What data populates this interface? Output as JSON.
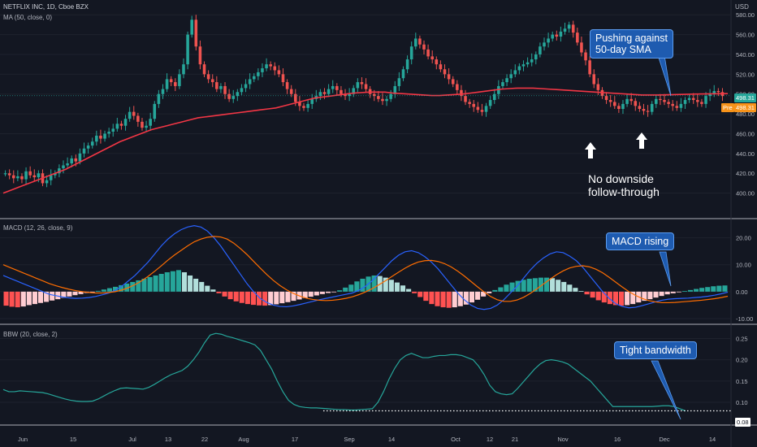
{
  "header": {
    "symbol": "NETFLIX INC, 1D, Cboe BZX",
    "ma_label": "MA (50, close, 0)",
    "currency": "USD"
  },
  "panes": {
    "macd_label": "MACD (12, 26, close, 9)",
    "bbw_label": "BBW (20, close, 2)"
  },
  "price_tags": {
    "last": "498.31",
    "pre_label": "Pre",
    "pre": "498.31",
    "bbw_last": "0.08"
  },
  "annotations": {
    "sma_callout": [
      "Pushing against",
      "50-day SMA"
    ],
    "macd_callout": "MACD rising",
    "bbw_callout": "Tight bandwidth",
    "no_downside": [
      "No downside",
      "follow-through"
    ]
  },
  "colors": {
    "background": "#131722",
    "up": "#26a69a",
    "down": "#ef5350",
    "ma": "#f23645",
    "macd": "#2962ff",
    "signal": "#ff6d00",
    "bbw": "#26a69a",
    "callout": "#1e5bb0"
  },
  "chart_data": [
    {
      "type": "candlestick",
      "title": "NETFLIX INC, 1D, Cboe BZX",
      "ylim": [
        380,
        590
      ],
      "y_ticks": [
        400,
        420,
        440,
        460,
        480,
        500,
        520,
        540,
        560,
        580
      ],
      "y_tick_labels": [
        "400.00",
        "420.00",
        "440.00",
        "460.00",
        "480.00",
        "500.00",
        "520.00",
        "540.00",
        "560.00",
        "580.00"
      ],
      "x_ticks": [
        "Jun",
        "15",
        "Jul",
        "13",
        "22",
        "Aug",
        "17",
        "Sep",
        "14",
        "Oct",
        "12",
        "21",
        "Nov",
        "16",
        "Dec",
        "14"
      ],
      "series": [
        {
          "name": "Close",
          "values": [
            420,
            418,
            415,
            417,
            414,
            422,
            418,
            416,
            420,
            410,
            413,
            418,
            420,
            425,
            428,
            430,
            435,
            432,
            440,
            445,
            448,
            452,
            458,
            455,
            460,
            462,
            465,
            470,
            468,
            475,
            482,
            478,
            472,
            466,
            468,
            475,
            490,
            500,
            505,
            515,
            512,
            508,
            520,
            530,
            560,
            575,
            548,
            530,
            520,
            515,
            512,
            505,
            508,
            500,
            495,
            498,
            502,
            506,
            510,
            515,
            518,
            522,
            526,
            530,
            528,
            524,
            520,
            512,
            505,
            500,
            492,
            488,
            486,
            490,
            495,
            498,
            502,
            500,
            505,
            508,
            504,
            500,
            498,
            500,
            506,
            512,
            510,
            505,
            500,
            498,
            495,
            493,
            495,
            500,
            508,
            516,
            525,
            535,
            548,
            556,
            550,
            545,
            538,
            535,
            530,
            525,
            520,
            515,
            510,
            504,
            498,
            492,
            490,
            487,
            484,
            482,
            488,
            494,
            500,
            508,
            512,
            516,
            520,
            524,
            528,
            530,
            532,
            535,
            540,
            548,
            552,
            556,
            560,
            558,
            563,
            566,
            570,
            562,
            552,
            542,
            534,
            520,
            510,
            504,
            498,
            494,
            492,
            488,
            485,
            490,
            495,
            493,
            488,
            485,
            483,
            482,
            490,
            495,
            494,
            492,
            490,
            488,
            486,
            490,
            494,
            496,
            494,
            492,
            490,
            498,
            500,
            503,
            502,
            498
          ]
        },
        {
          "name": "MA (50, close, 0)",
          "values": [
            400,
            403,
            406,
            409,
            412,
            415,
            418,
            421,
            424,
            428,
            432,
            436,
            440,
            444,
            448,
            452,
            455,
            458,
            461,
            464,
            466,
            468,
            470,
            472,
            474,
            476,
            477,
            478,
            479,
            480,
            481,
            482,
            483,
            484,
            485,
            486,
            488,
            490,
            492,
            494,
            496,
            497,
            498,
            499,
            500,
            501,
            501.5,
            502,
            502,
            502,
            501,
            500.5,
            500,
            499.5,
            499,
            498.5,
            498.5,
            499,
            499.5,
            500,
            501,
            502,
            503,
            504,
            505,
            505.5,
            506,
            506,
            506,
            505.5,
            505,
            504.5,
            504,
            503.5,
            503,
            502.5,
            502,
            501.5,
            501,
            500.5,
            500,
            499.5,
            499,
            499,
            499,
            499.2,
            499.4,
            499.6,
            499.8,
            500,
            500.1,
            500.2,
            500.3,
            500.4
          ]
        }
      ]
    },
    {
      "type": "bar",
      "title": "MACD (12, 26, close, 9)",
      "ylim": [
        -10,
        25
      ],
      "y_ticks": [
        -10,
        0,
        10,
        20
      ],
      "y_tick_labels": [
        "-10.00",
        "0.00",
        "10.00",
        "20.00"
      ],
      "series": [
        {
          "name": "Histogram",
          "values": [
            -5.2,
            -5.6,
            -5.8,
            -5.5,
            -5.0,
            -4.6,
            -4.2,
            -3.8,
            -3.3,
            -2.8,
            -2.3,
            -1.8,
            -1.3,
            -0.9,
            -0.5,
            -0.2,
            0.3,
            0.8,
            1.3,
            1.8,
            2.4,
            3.0,
            3.6,
            4.2,
            4.8,
            5.4,
            6.0,
            6.6,
            7.2,
            7.6,
            8.0,
            7.2,
            6.0,
            4.8,
            3.6,
            2.2,
            0.8,
            -0.6,
            -1.8,
            -2.8,
            -3.6,
            -4.2,
            -4.6,
            -4.9,
            -5.1,
            -5.2,
            -5.0,
            -4.7,
            -4.3,
            -3.9,
            -3.4,
            -2.9,
            -2.4,
            -1.9,
            -1.4,
            -0.9,
            -0.5,
            -0.2,
            0.5,
            1.5,
            2.6,
            3.8,
            4.8,
            5.6,
            6.0,
            5.8,
            5.2,
            4.4,
            3.4,
            2.3,
            1.0,
            -0.6,
            -2.0,
            -3.4,
            -4.6,
            -5.4,
            -5.8,
            -6.0,
            -5.8,
            -5.4,
            -4.8,
            -4.0,
            -3.0,
            -1.8,
            -0.6,
            0.6,
            1.6,
            2.6,
            3.4,
            4.0,
            4.4,
            4.8,
            5.0,
            5.2,
            5.2,
            5.0,
            4.4,
            3.6,
            2.6,
            1.4,
            0.2,
            -1.0,
            -2.2,
            -3.2,
            -4.0,
            -4.6,
            -5.0,
            -5.2,
            -5.0,
            -4.6,
            -4.0,
            -3.4,
            -2.8,
            -2.2,
            -1.6,
            -1.0,
            -0.6,
            -0.2,
            0.2,
            0.6,
            1.0,
            1.4,
            1.7,
            2.0,
            2.2,
            2.3
          ]
        },
        {
          "name": "MACD",
          "values": [
            6,
            5,
            4,
            3,
            2,
            1,
            0,
            -1,
            -1.5,
            -2,
            -2.3,
            -2.5,
            -2.4,
            -2.2,
            -1.8,
            -1.2,
            -0.5,
            0.5,
            2,
            4,
            6,
            8.5,
            11,
            14,
            17,
            19.5,
            21.5,
            23,
            24,
            24.5,
            24,
            22.5,
            20,
            17,
            13.5,
            10,
            6.5,
            3,
            0,
            -2.5,
            -4,
            -5,
            -5.5,
            -5.6,
            -5.3,
            -4.8,
            -4.2,
            -3.6,
            -3,
            -2.5,
            -2,
            -1.5,
            -1,
            -0.5,
            0.5,
            2,
            4,
            6.5,
            9,
            11.5,
            13.5,
            14.8,
            15.2,
            14.5,
            13,
            11,
            8.5,
            5.5,
            2.5,
            -0.5,
            -3,
            -5,
            -6.2,
            -6.6,
            -6.2,
            -5,
            -3,
            -0.5,
            2,
            5,
            8,
            10.5,
            12.5,
            14,
            14.8,
            14.5,
            13.2,
            11.5,
            9,
            6,
            3,
            0,
            -2.5,
            -4.5,
            -5.5,
            -6,
            -5.8,
            -5.2,
            -4.5,
            -3.8,
            -3.2,
            -2.8,
            -2.6,
            -2.5,
            -2.4,
            -2.2,
            -2,
            -1.7,
            -1.3,
            -0.8,
            -0.2
          ]
        },
        {
          "name": "Signal",
          "values": [
            10,
            9,
            8,
            7,
            6,
            5,
            4,
            3,
            2.2,
            1.5,
            0.9,
            0.4,
            0,
            -0.3,
            -0.5,
            -0.5,
            -0.3,
            0,
            0.6,
            1.5,
            2.6,
            4,
            5.7,
            7.6,
            9.6,
            11.7,
            13.6,
            15.3,
            17,
            18.5,
            19.5,
            20.2,
            20.5,
            20.3,
            19.5,
            18,
            16,
            13.8,
            11.3,
            8.8,
            6.4,
            4.2,
            2.3,
            0.7,
            -0.6,
            -1.6,
            -2.4,
            -2.9,
            -3.2,
            -3.3,
            -3.2,
            -2.9,
            -2.5,
            -1.9,
            -1.1,
            -0.1,
            1.1,
            2.5,
            4,
            5.6,
            7.2,
            8.7,
            10,
            11,
            11.5,
            11.6,
            11.2,
            10.4,
            9.2,
            7.6,
            5.8,
            3.8,
            1.8,
            -0.1,
            -1.8,
            -3,
            -3.6,
            -3.6,
            -3.1,
            -2.1,
            -0.7,
            1,
            2.8,
            4.6,
            6.3,
            7.7,
            8.8,
            9.4,
            9.6,
            9.2,
            8.3,
            7,
            5.3,
            3.5,
            1.7,
            0,
            -1.4,
            -2.5,
            -3.3,
            -3.8,
            -4.1,
            -4.1,
            -4,
            -3.8,
            -3.6,
            -3.4,
            -3.2,
            -2.9,
            -2.6,
            -2.2,
            -1.7
          ]
        }
      ]
    },
    {
      "type": "line",
      "title": "BBW (20, close, 2)",
      "ylim": [
        0.06,
        0.27
      ],
      "y_ticks": [
        0.1,
        0.15,
        0.2,
        0.25
      ],
      "y_tick_labels": [
        "0.10",
        "0.15",
        "0.20",
        "0.25"
      ],
      "series": [
        {
          "name": "BBW",
          "values": [
            0.13,
            0.125,
            0.125,
            0.127,
            0.126,
            0.125,
            0.124,
            0.123,
            0.12,
            0.116,
            0.112,
            0.108,
            0.105,
            0.103,
            0.102,
            0.102,
            0.103,
            0.108,
            0.115,
            0.122,
            0.128,
            0.133,
            0.134,
            0.133,
            0.132,
            0.131,
            0.135,
            0.142,
            0.15,
            0.158,
            0.165,
            0.17,
            0.175,
            0.185,
            0.2,
            0.218,
            0.24,
            0.258,
            0.262,
            0.26,
            0.255,
            0.252,
            0.248,
            0.244,
            0.24,
            0.235,
            0.222,
            0.2,
            0.178,
            0.15,
            0.125,
            0.105,
            0.095,
            0.09,
            0.088,
            0.087,
            0.087,
            0.086,
            0.085,
            0.084,
            0.083,
            0.083,
            0.082,
            0.082,
            0.083,
            0.084,
            0.085,
            0.1,
            0.125,
            0.155,
            0.18,
            0.2,
            0.21,
            0.215,
            0.21,
            0.205,
            0.205,
            0.208,
            0.21,
            0.21,
            0.212,
            0.212,
            0.21,
            0.205,
            0.2,
            0.185,
            0.165,
            0.14,
            0.125,
            0.12,
            0.118,
            0.12,
            0.133,
            0.148,
            0.163,
            0.178,
            0.19,
            0.198,
            0.2,
            0.198,
            0.195,
            0.19,
            0.18,
            0.17,
            0.16,
            0.15,
            0.135,
            0.12,
            0.105,
            0.09,
            0.09,
            0.09,
            0.09,
            0.09,
            0.09,
            0.09,
            0.09,
            0.091,
            0.092,
            0.092,
            0.09,
            0.085,
            0.08
          ]
        }
      ]
    }
  ]
}
